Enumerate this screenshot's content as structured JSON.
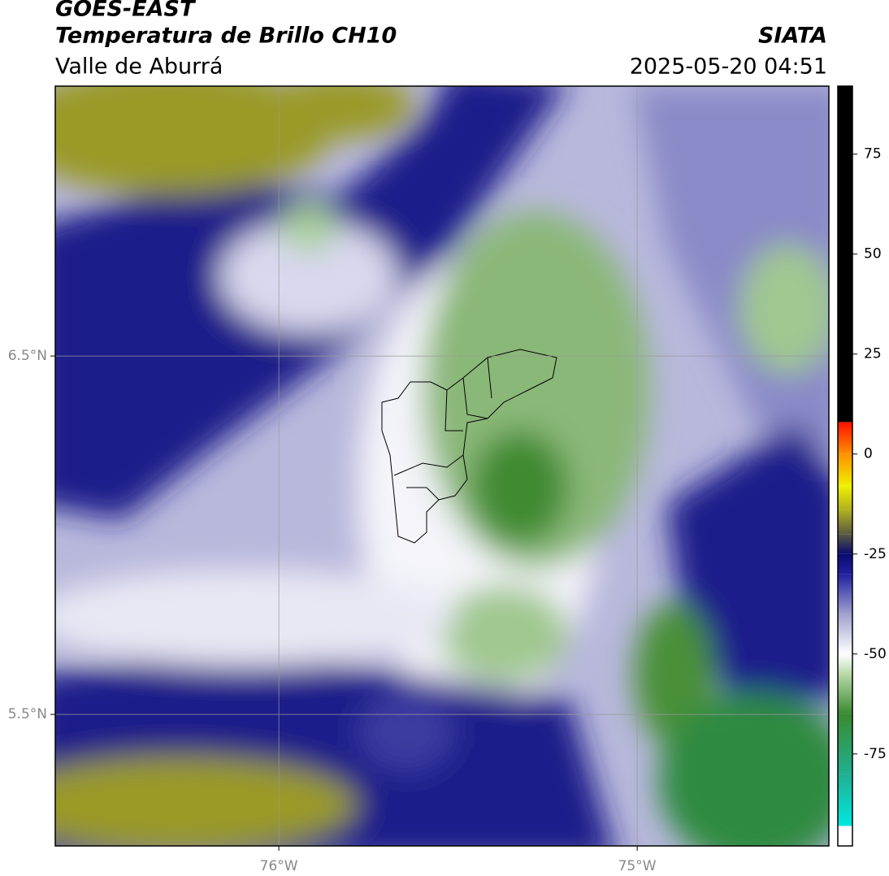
{
  "header": {
    "title": "GOES-EAST",
    "subtitle": "Temperatura de Brillo CH10",
    "region": "Valle de Aburrá",
    "source": "SIATA",
    "datetime": "2025-05-20 04:51"
  },
  "map": {
    "xlim": [
      -76.624,
      -74.465
    ],
    "ylim": [
      5.133,
      7.253
    ],
    "xticks": [
      {
        "value": -76,
        "label": "76°W"
      },
      {
        "value": -75,
        "label": "75°W"
      }
    ],
    "yticks": [
      {
        "value": 5.5,
        "label": "5.5°N"
      },
      {
        "value": 6.5,
        "label": "6.5°N"
      }
    ],
    "grid": true
  },
  "colorbar": {
    "lim": [
      -98,
      92
    ],
    "ticks": [
      -75,
      -50,
      -25,
      0,
      25,
      50,
      75
    ],
    "stops": [
      {
        "value": -98,
        "color": "#ffffff"
      },
      {
        "value": -93,
        "color": "#ffffff"
      },
      {
        "value": -93,
        "color": "#00e8e0"
      },
      {
        "value": -80,
        "color": "#20b090"
      },
      {
        "value": -65,
        "color": "#3a8a30"
      },
      {
        "value": -55,
        "color": "#b8d8a8"
      },
      {
        "value": -50,
        "color": "#ffffff"
      },
      {
        "value": -40,
        "color": "#a0a0d0"
      },
      {
        "value": -30,
        "color": "#2020a0"
      },
      {
        "value": -25,
        "color": "#0a0a70"
      },
      {
        "value": -20,
        "color": "#5a5a40"
      },
      {
        "value": -14,
        "color": "#b0b020"
      },
      {
        "value": -8,
        "color": "#f0f000"
      },
      {
        "value": 0,
        "color": "#ff9000"
      },
      {
        "value": 8,
        "color": "#ff1000"
      },
      {
        "value": 8,
        "color": "#000000"
      },
      {
        "value": 92,
        "color": "#000000"
      }
    ]
  }
}
